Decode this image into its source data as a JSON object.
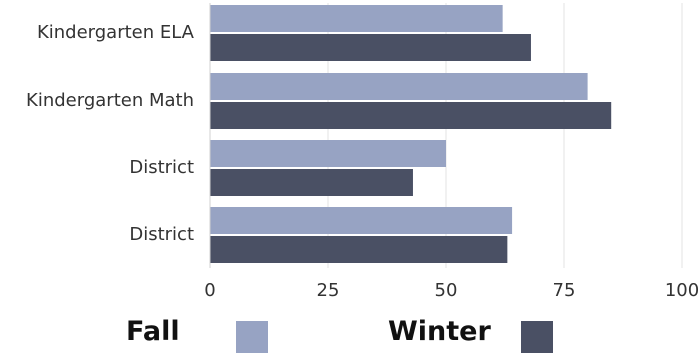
{
  "chart_data": {
    "type": "bar",
    "orientation": "horizontal",
    "categories": [
      "Kindergarten ELA",
      "Kindergarten Math",
      "District",
      "District"
    ],
    "series": [
      {
        "name": "Fall",
        "values": [
          62,
          80,
          50,
          64
        ],
        "color": "#97a3c3"
      },
      {
        "name": "Winter",
        "values": [
          68,
          85,
          43,
          63
        ],
        "color": "#4a5064"
      }
    ],
    "xlim": [
      0,
      100
    ],
    "xticks": [
      "0",
      "25",
      "50",
      "75",
      "100"
    ],
    "xtick_values": [
      0,
      25,
      50,
      75,
      100
    ],
    "grid": "vertical",
    "legend_position": "bottom",
    "title": "",
    "xlabel": "",
    "ylabel": ""
  }
}
